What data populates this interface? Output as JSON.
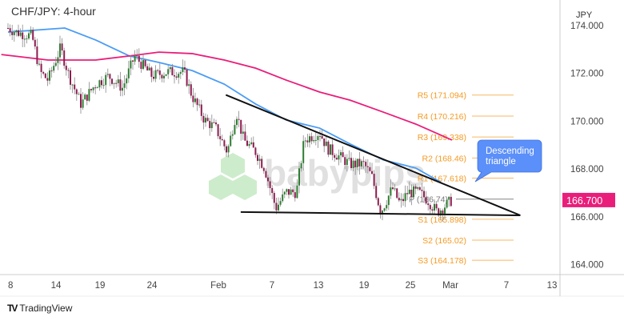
{
  "header": {
    "title": "CHF/JPY: 4-hour"
  },
  "footer": {
    "brand": "TradingView",
    "brand_icon": "tradingview-logo-icon"
  },
  "watermark": {
    "text": "babypips"
  },
  "price_tag": {
    "value": "166.700",
    "color": "#e91e7a"
  },
  "annotation": {
    "text_line1": "Descending",
    "text_line2": "triangle",
    "color": "#5b8ff9"
  },
  "chart_data": {
    "type": "candlestick",
    "symbol": "CHF/JPY",
    "timeframe": "4-hour",
    "currency_label": "JPY",
    "ylim": [
      163.5,
      174.6
    ],
    "y_ticks": [
      "174.000",
      "172.000",
      "170.000",
      "168.000",
      "166.000",
      "164.000"
    ],
    "x_ticks": [
      {
        "label": "8",
        "date": "Jan 8"
      },
      {
        "label": "14",
        "date": "Jan 14"
      },
      {
        "label": "19",
        "date": "Jan 19"
      },
      {
        "label": "24",
        "date": "Jan 24"
      },
      {
        "label": "Feb",
        "date": "Feb 1"
      },
      {
        "label": "7",
        "date": "Feb 7"
      },
      {
        "label": "13",
        "date": "Feb 13"
      },
      {
        "label": "19",
        "date": "Feb 19"
      },
      {
        "label": "25",
        "date": "Feb 25"
      },
      {
        "label": "Mar",
        "date": "Mar 1"
      },
      {
        "label": "7",
        "date": "Mar 7"
      },
      {
        "label": "13",
        "date": "Mar 13"
      }
    ],
    "price_path": [
      [
        "Jan 8 00:00",
        173.9
      ],
      [
        "Jan 9 00:00",
        173.73
      ],
      [
        "Jan 11 00:00",
        173.56
      ],
      [
        "Jan 12 00:00",
        172.06
      ],
      [
        "Jan 13 00:00",
        171.72
      ],
      [
        "Jan 14 12:00",
        173.06
      ],
      [
        "Jan 15 12:00",
        171.89
      ],
      [
        "Jan 16 20:00",
        170.72
      ],
      [
        "Jan 18 12:00",
        171.55
      ],
      [
        "Jan 19 20:00",
        171.89
      ],
      [
        "Jan 21 04:00",
        171.39
      ],
      [
        "Jan 22 08:00",
        172.73
      ],
      [
        "Jan 23 08:00",
        172.22
      ],
      [
        "Jan 24 00:00",
        171.89
      ],
      [
        "Jan 25 20:00",
        172.06
      ],
      [
        "Jan 27 20:00",
        172.06
      ],
      [
        "Jan 28 20:00",
        171.05
      ],
      [
        "Jan 30 08:00",
        170.05
      ],
      [
        "Jan 31 16:00",
        169.71
      ],
      [
        "Feb 2 00:00",
        168.71
      ],
      [
        "Feb 3 00:00",
        170.38
      ],
      [
        "Feb 3 20:00",
        169.21
      ],
      [
        "Feb 5 04:00",
        168.71
      ],
      [
        "Feb 6 04:00",
        168.04
      ],
      [
        "Feb 7 12:00",
        166.36
      ],
      [
        "Feb 8 20:00",
        167.03
      ],
      [
        "Feb 10 04:00",
        167.03
      ],
      [
        "Feb 11 04:00",
        169.21
      ],
      [
        "Feb 13 04:00",
        169.54
      ],
      [
        "Feb 14 04:00",
        168.87
      ],
      [
        "Feb 15 16:00",
        168.54
      ],
      [
        "Feb 17 04:00",
        168.2
      ],
      [
        "Feb 19 00:00",
        168.2
      ],
      [
        "Feb 20 00:00",
        167.7
      ],
      [
        "Feb 21 04:00",
        166.19
      ],
      [
        "Feb 22 16:00",
        167.2
      ],
      [
        "Feb 23 16:00",
        166.53
      ],
      [
        "Feb 24 16:00",
        167.03
      ],
      [
        "Feb 26 00:00",
        167.03
      ],
      [
        "Feb 27 04:00",
        166.7
      ],
      [
        "Feb 28 08:00",
        166.19
      ],
      [
        "Mar 1 04:00",
        166.7
      ]
    ],
    "candle_colors": {
      "up": "#2e7d32",
      "down": "#8e1b4f",
      "wick": "#888888"
    },
    "moving_averages": [
      {
        "color": "#4a9cf5",
        "points": [
          [
            "Jan 8 00:00",
            173.73
          ],
          [
            "Jan 15 00:00",
            173.9
          ],
          [
            "Jan 18 12:00",
            173.4
          ],
          [
            "Jan 21 20:00",
            172.73
          ],
          [
            "Jan 24 20:00",
            172.46
          ],
          [
            "Jan 28 20:00",
            172.12
          ],
          [
            "Feb 1 16:00",
            171.55
          ],
          [
            "Feb 5 04:00",
            170.72
          ],
          [
            "Feb 8 20:00",
            170.05
          ],
          [
            "Feb 13 04:00",
            169.71
          ],
          [
            "Feb 17 04:00",
            169.05
          ],
          [
            "Feb 21 12:00",
            168.38
          ],
          [
            "Feb 25 16:00",
            168.04
          ],
          [
            "Feb 28 20:00",
            167.44
          ]
        ]
      },
      {
        "color": "#e91e7a",
        "points": [
          [
            "Jan 7 04:00",
            172.79
          ],
          [
            "Jan 13 00:00",
            172.56
          ],
          [
            "Jan 18 12:00",
            172.56
          ],
          [
            "Jan 21 20:00",
            172.73
          ],
          [
            "Jan 24 20:00",
            172.89
          ],
          [
            "Jan 28 20:00",
            172.83
          ],
          [
            "Feb 1 16:00",
            172.56
          ],
          [
            "Feb 5 04:00",
            172.22
          ],
          [
            "Feb 8 20:00",
            171.72
          ],
          [
            "Feb 13 04:00",
            171.22
          ],
          [
            "Feb 17 04:00",
            170.88
          ],
          [
            "Feb 21 12:00",
            170.38
          ],
          [
            "Feb 25 16:00",
            169.88
          ],
          [
            "Mar 1 04:00",
            169.21
          ]
        ]
      }
    ],
    "trendlines": [
      {
        "name": "resistance",
        "from": [
          "Feb 1 20:00",
          171.1
        ],
        "to": [
          "Mar 8 20:00",
          166.06
        ],
        "color": "#111111"
      },
      {
        "name": "support",
        "from": [
          "Feb 3 12:00",
          166.2
        ],
        "to": [
          "Mar 8 20:00",
          166.06
        ],
        "color": "#111111"
      }
    ],
    "pivot_levels": [
      {
        "label": "R5 (171.094)",
        "value": 171.094
      },
      {
        "label": "R4 (170.216)",
        "value": 170.216
      },
      {
        "label": "R3 (169.338)",
        "value": 169.338
      },
      {
        "label": "R2 (168.46)",
        "value": 168.46
      },
      {
        "label": "R1 (167.618)",
        "value": 167.618
      },
      {
        "label": "P (166.74)",
        "value": 166.74
      },
      {
        "label": "S1 (165.898)",
        "value": 165.898
      },
      {
        "label": "S2 (165.02)",
        "value": 165.02
      },
      {
        "label": "S3 (164.178)",
        "value": 164.178
      }
    ],
    "pivot_color": "#f59a23",
    "last_price": 166.7
  }
}
